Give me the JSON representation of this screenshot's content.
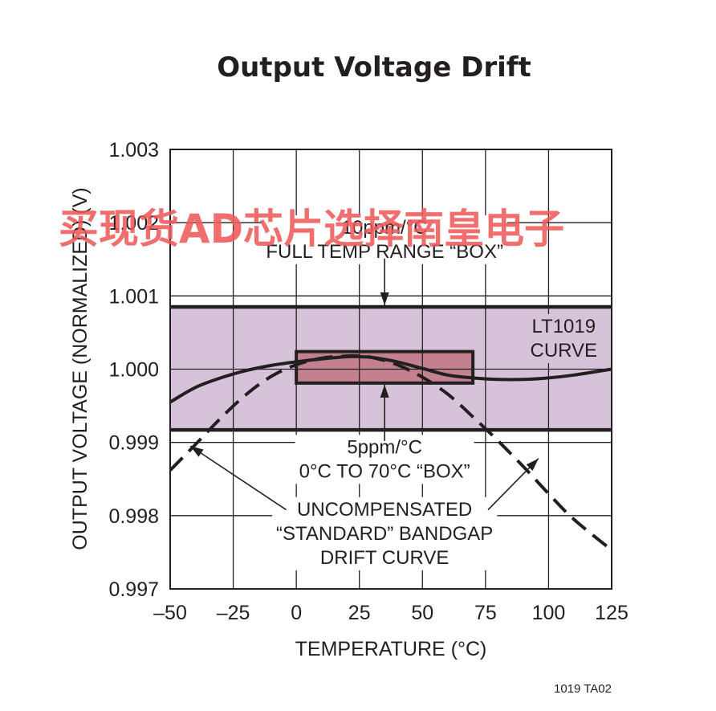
{
  "colors": {
    "full_box_fill": "#d7c3d9",
    "small_box_fill": "#c3808e",
    "grid": "#231f20",
    "curves": "#231f20",
    "watermark": "#ee5a5a"
  },
  "watermark": "买现货AD芯片选择南皇电子",
  "figure_code": "1019 TA02",
  "chart_data": {
    "type": "line",
    "title": "Output Voltage Drift",
    "xlabel": "TEMPERATURE (°C)",
    "ylabel": "OUTPUT VOLTAGE (NORMALIZED) (V)",
    "xlim": [
      -50,
      125
    ],
    "ylim": [
      0.997,
      1.003
    ],
    "x_ticks": [
      -50,
      -25,
      0,
      25,
      50,
      75,
      100,
      125
    ],
    "x_tick_labels": [
      "–50",
      "–25",
      "0",
      "25",
      "50",
      "75",
      "100",
      "125"
    ],
    "y_ticks": [
      0.997,
      0.998,
      0.999,
      1.0,
      1.001,
      1.002,
      1.003
    ],
    "y_tick_labels": [
      "0.997",
      "0.998",
      "0.999",
      "1.000",
      "1.001",
      "1.002",
      "1.003"
    ],
    "grid": true,
    "boxes": [
      {
        "name": "10ppm/°C FULL TEMP RANGE “BOX”",
        "x": [
          -50,
          125
        ],
        "y": [
          0.99917,
          1.00085
        ]
      },
      {
        "name": "5ppm/°C 0°C TO 70°C “BOX”",
        "x": [
          0,
          70
        ],
        "y": [
          0.99981,
          1.00024
        ]
      }
    ],
    "series": [
      {
        "name": "LT1019 CURVE",
        "style": "solid",
        "x": [
          -50,
          -40,
          -30,
          -20,
          -10,
          0,
          10,
          20,
          25,
          30,
          40,
          50,
          60,
          70,
          80,
          90,
          100,
          110,
          125
        ],
        "y": [
          0.99955,
          0.99975,
          0.99988,
          0.99998,
          1.00005,
          1.0001,
          1.00014,
          1.00017,
          1.00017,
          1.00016,
          1.0001,
          1.00001,
          0.99992,
          0.99988,
          0.99986,
          0.99986,
          0.99988,
          0.99992,
          1.0
        ]
      },
      {
        "name": "UNCOMPENSATED “STANDARD” BANDGAP DRIFT CURVE",
        "style": "dashed",
        "x": [
          -50,
          -40,
          -30,
          -20,
          -10,
          0,
          10,
          20,
          25,
          30,
          40,
          50,
          60,
          70,
          80,
          90,
          100,
          110,
          125
        ],
        "y": [
          0.99862,
          0.99897,
          0.99933,
          0.99965,
          0.9999,
          1.00006,
          1.00015,
          1.00018,
          1.00018,
          1.00016,
          1.00006,
          0.99989,
          0.99966,
          0.99935,
          0.99902,
          0.99867,
          0.9983,
          0.99795,
          0.99753
        ]
      }
    ],
    "annotations": [
      {
        "lines": [
          "10ppm/°C",
          "FULL TEMP RANGE “BOX”"
        ],
        "x": 35,
        "y": 1.00185
      },
      {
        "lines": [
          "LT1019",
          "CURVE"
        ],
        "x": 106,
        "y": 1.0005
      },
      {
        "lines": [
          "5ppm/°C",
          "0°C TO 70°C “BOX”"
        ],
        "x": 35,
        "y": 0.99885
      },
      {
        "lines": [
          "UNCOMPENSATED",
          "“STANDARD” BANDGAP",
          "DRIFT CURVE"
        ],
        "x": 35,
        "y": 0.998
      }
    ]
  }
}
